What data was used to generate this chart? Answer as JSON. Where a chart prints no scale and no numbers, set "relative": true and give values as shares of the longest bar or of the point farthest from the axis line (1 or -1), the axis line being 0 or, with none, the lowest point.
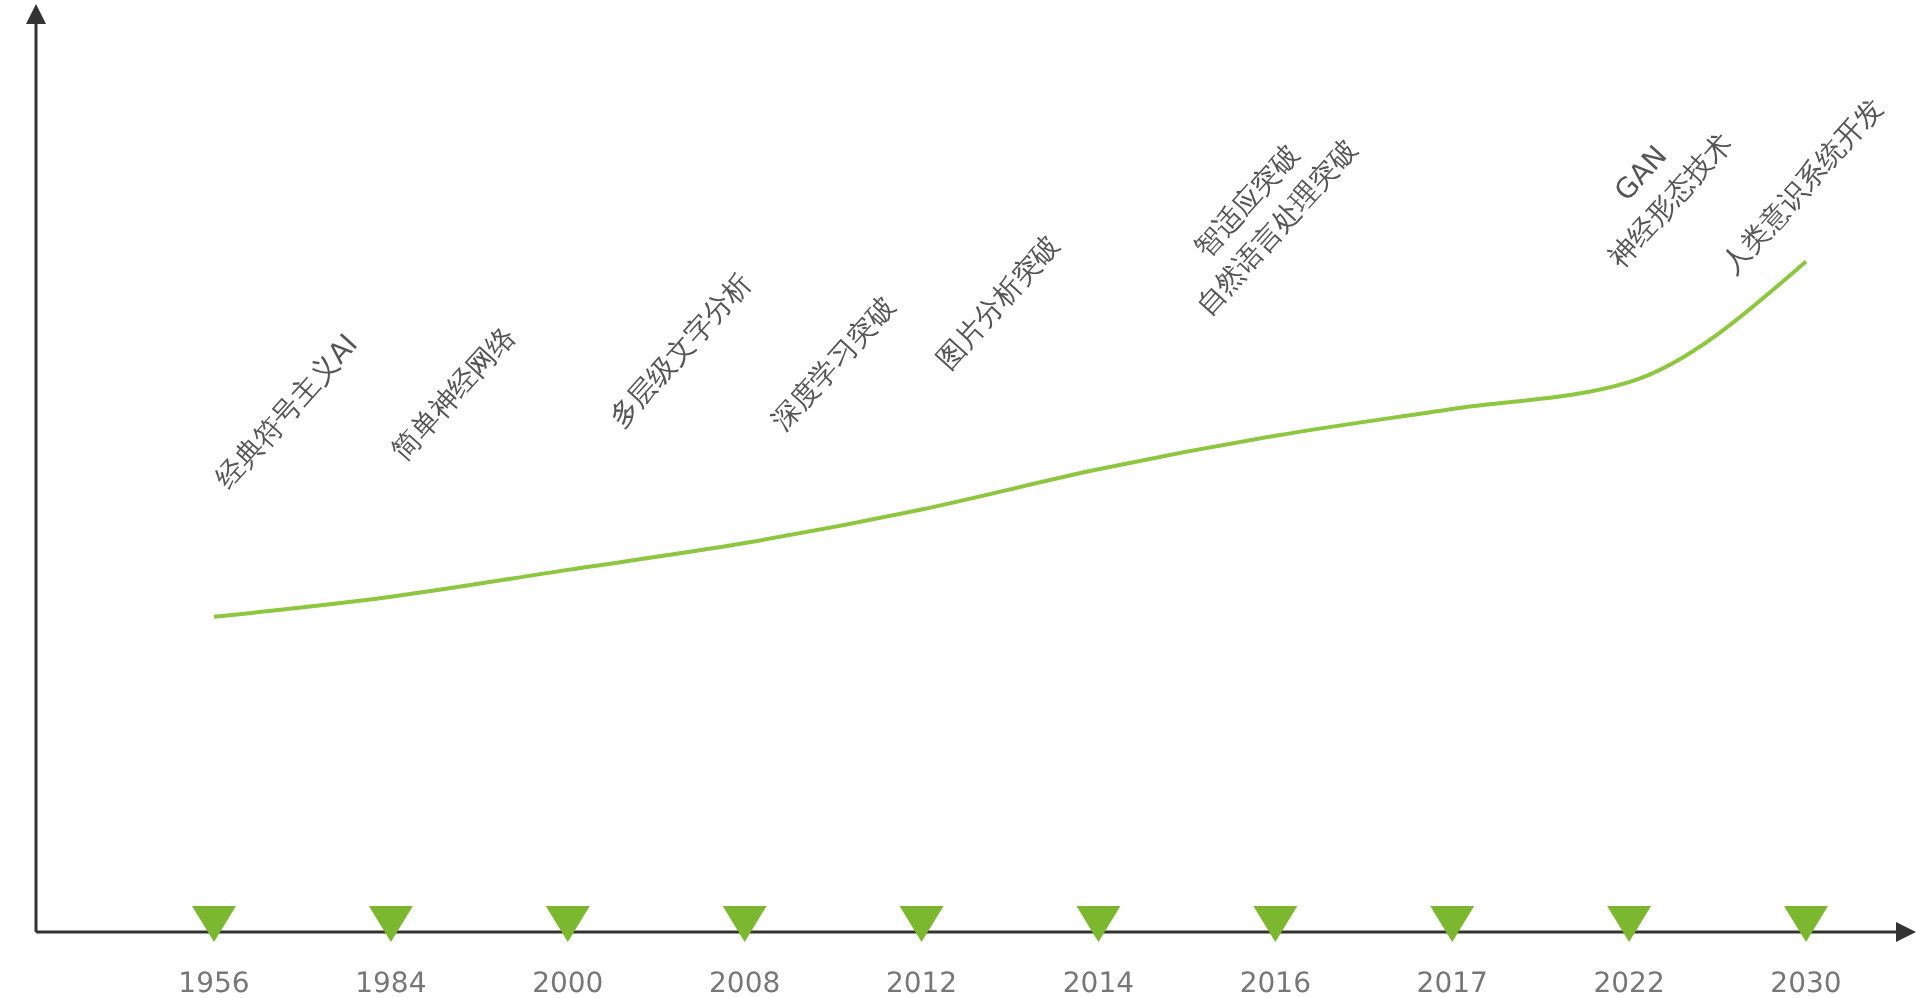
{
  "chart_data": {
    "type": "line",
    "relative": true,
    "categories": [
      "1956",
      "1984",
      "2000",
      "2008",
      "2012",
      "2014",
      "2016",
      "2017",
      "2022",
      "2030"
    ],
    "series": [
      {
        "color": "#8dc63f",
        "values": [
          0.47,
          0.5,
          0.54,
          0.58,
          0.63,
          0.69,
          0.74,
          0.78,
          0.82,
          1
        ]
      }
    ],
    "annotations": [
      "经典符号主义AI",
      "简单神经网络",
      "多层级文字分析",
      "深度学习突破",
      "图片分析突破",
      "智适应突破\n自然语言处理突破",
      "GAN\n神经形态技术",
      "人类意识系统开发"
    ],
    "marker": "none",
    "grid": false,
    "legend": false
  }
}
